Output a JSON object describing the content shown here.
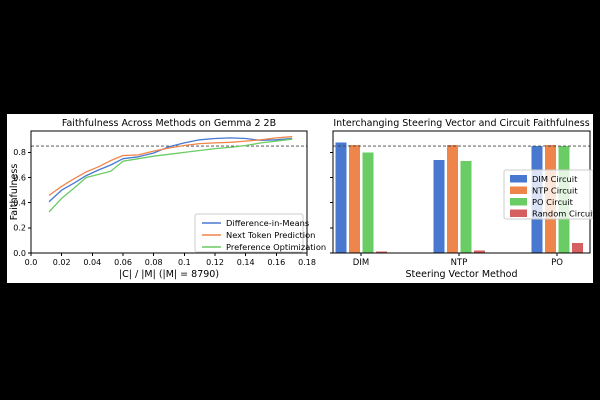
{
  "background_color": "#000000",
  "figure_background": "#ffffff",
  "dashed_reference_line_color": "#444444",
  "chart_data": [
    {
      "type": "line",
      "title": "Faithfulness Across Methods on Gemma 2 2B",
      "xlabel": "|C| / |M| (|M| = 8790)",
      "ylabel": "Faithfulness",
      "xlim": [
        0.0,
        0.18
      ],
      "ylim": [
        0.0,
        0.97
      ],
      "xtick_values": [
        0.0,
        0.02,
        0.04,
        0.06,
        0.08,
        0.1,
        0.12,
        0.14,
        0.16,
        0.18
      ],
      "xtick_labels": [
        "0.0",
        "0.02",
        "0.04",
        "0.06",
        "0.08",
        "0.1",
        "0.12",
        "0.14",
        "0.16",
        "0.18"
      ],
      "ytick_values": [
        0.0,
        0.2,
        0.4,
        0.6,
        0.8
      ],
      "ytick_labels": [
        "0.0",
        "0.2",
        "0.4",
        "0.6",
        "0.8"
      ],
      "dashed_hline": 0.85,
      "grid": false,
      "legend_position": "lower right",
      "x": [
        0.012,
        0.02,
        0.028,
        0.036,
        0.044,
        0.052,
        0.06,
        0.07,
        0.08,
        0.09,
        0.1,
        0.11,
        0.12,
        0.13,
        0.14,
        0.15,
        0.16,
        0.17
      ],
      "series": [
        {
          "name": "Difference-in-Means",
          "color": "#4878d0",
          "values": [
            0.41,
            0.5,
            0.555,
            0.615,
            0.66,
            0.7,
            0.75,
            0.765,
            0.795,
            0.845,
            0.875,
            0.9,
            0.91,
            0.915,
            0.91,
            0.895,
            0.9,
            0.91
          ]
        },
        {
          "name": "Next Token Prediction",
          "color": "#ee854a",
          "values": [
            0.46,
            0.53,
            0.59,
            0.645,
            0.685,
            0.735,
            0.775,
            0.78,
            0.81,
            0.835,
            0.855,
            0.87,
            0.875,
            0.88,
            0.89,
            0.9,
            0.915,
            0.925
          ]
        },
        {
          "name": "Preference Optimization",
          "color": "#6acc64",
          "values": [
            0.33,
            0.435,
            0.515,
            0.6,
            0.625,
            0.65,
            0.73,
            0.75,
            0.77,
            0.785,
            0.8,
            0.815,
            0.83,
            0.84,
            0.855,
            0.875,
            0.89,
            0.905
          ]
        }
      ]
    },
    {
      "type": "bar",
      "title": "Interchanging Steering Vector and Circuit Faithfulness",
      "xlabel": "Steering Vector Method",
      "ylabel": "",
      "ylim": [
        0.0,
        0.97
      ],
      "ytick_values": [
        0.0,
        0.2,
        0.4,
        0.6,
        0.8
      ],
      "categories": [
        "DIM",
        "NTP",
        "PO"
      ],
      "dashed_hline": 0.85,
      "grid": false,
      "legend_position": "center right",
      "series": [
        {
          "name": "DIM Circuit",
          "color": "#4878d0",
          "values": [
            0.88,
            0.74,
            0.85
          ]
        },
        {
          "name": "NTP Circuit",
          "color": "#ee854a",
          "values": [
            0.86,
            0.86,
            0.86
          ]
        },
        {
          "name": "PO Circuit",
          "color": "#6acc64",
          "values": [
            0.8,
            0.73,
            0.85
          ]
        },
        {
          "name": "Random Circuit",
          "color": "#d65f5f",
          "values": [
            0.01,
            0.02,
            0.08
          ]
        }
      ]
    }
  ]
}
